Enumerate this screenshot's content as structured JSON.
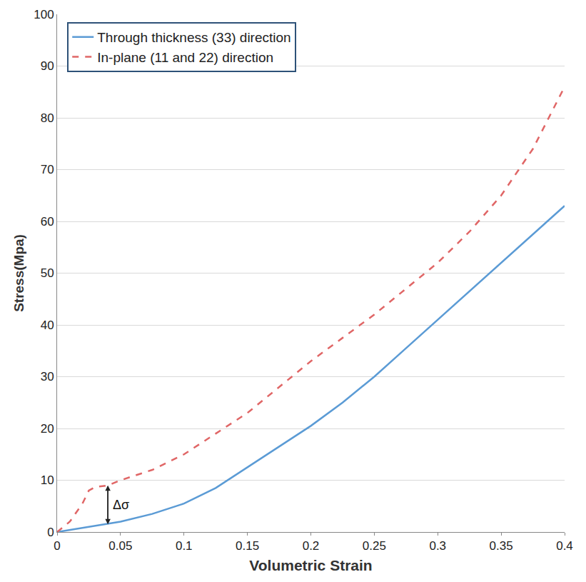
{
  "chart_data": {
    "type": "line",
    "x_label": "Volumetric Strain",
    "y_label": "Stress(Mpa)",
    "xlim": [
      0,
      0.4
    ],
    "ylim": [
      0,
      100
    ],
    "xticks": [
      0,
      0.05,
      0.1,
      0.15,
      0.2,
      0.25,
      0.3,
      0.35,
      0.4
    ],
    "yticks": [
      0,
      10,
      20,
      30,
      40,
      50,
      60,
      70,
      80,
      90,
      100
    ],
    "grid": true,
    "legend": "upper left",
    "series": [
      {
        "name": "Through thickness (33) direction",
        "color": "#5b9bd5",
        "line_style": "solid",
        "x": [
          0,
          0.02,
          0.04,
          0.05,
          0.075,
          0.1,
          0.125,
          0.15,
          0.175,
          0.2,
          0.225,
          0.25,
          0.275,
          0.3,
          0.325,
          0.35,
          0.375,
          0.4
        ],
        "values": [
          0,
          0.8,
          1.5,
          2,
          3.5,
          5.5,
          8.5,
          12.5,
          16.5,
          20.5,
          25,
          30,
          35.5,
          41,
          46.5,
          52,
          57.5,
          63
        ]
      },
      {
        "name": "In-plane (11 and 22) direction",
        "color": "#e06666",
        "line_style": "dash",
        "x": [
          0,
          0.01,
          0.02,
          0.025,
          0.03,
          0.04,
          0.05,
          0.075,
          0.1,
          0.125,
          0.15,
          0.175,
          0.2,
          0.225,
          0.25,
          0.275,
          0.3,
          0.325,
          0.35,
          0.375,
          0.4
        ],
        "values": [
          0,
          2,
          5.5,
          8,
          8.7,
          9,
          10,
          12,
          15,
          19,
          23,
          28,
          33,
          37.5,
          42,
          47,
          52,
          58,
          65,
          74,
          86
        ]
      }
    ],
    "annotations": [
      {
        "text": "Δσ",
        "x": 0.04
      }
    ]
  }
}
